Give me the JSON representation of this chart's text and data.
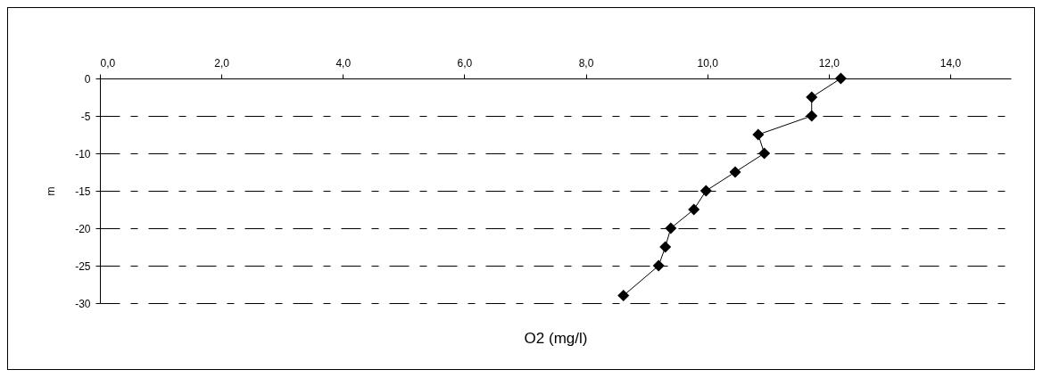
{
  "chart_data": {
    "type": "line",
    "xlabel": "O2 (mg/l)",
    "ylabel": "m",
    "x": [
      12.2,
      11.72,
      11.72,
      10.84,
      10.94,
      10.46,
      9.98,
      9.78,
      9.4,
      9.31,
      9.2,
      8.62
    ],
    "series": [
      {
        "color": "#000000",
        "values": [
          0,
          -2.5,
          -5,
          -7.5,
          -10,
          -12.5,
          -15,
          -17.5,
          -20,
          -22.5,
          -25,
          -29
        ]
      }
    ],
    "xlim": [
      0,
      15
    ],
    "xticks": [
      {
        "value": 0,
        "label": "0,0"
      },
      {
        "value": 2,
        "label": "2,0"
      },
      {
        "value": 4,
        "label": "4,0"
      },
      {
        "value": 6,
        "label": "6,0"
      },
      {
        "value": 8,
        "label": "8,0"
      },
      {
        "value": 10,
        "label": "10,0"
      },
      {
        "value": 12,
        "label": "12,0"
      },
      {
        "value": 14,
        "label": "14,0"
      }
    ],
    "ylim": [
      -30,
      0
    ],
    "yticks": [
      0,
      -5,
      -10,
      -15,
      -20,
      -25,
      -30
    ],
    "grid": "y",
    "marker": "diamond",
    "line_style": "solid"
  }
}
